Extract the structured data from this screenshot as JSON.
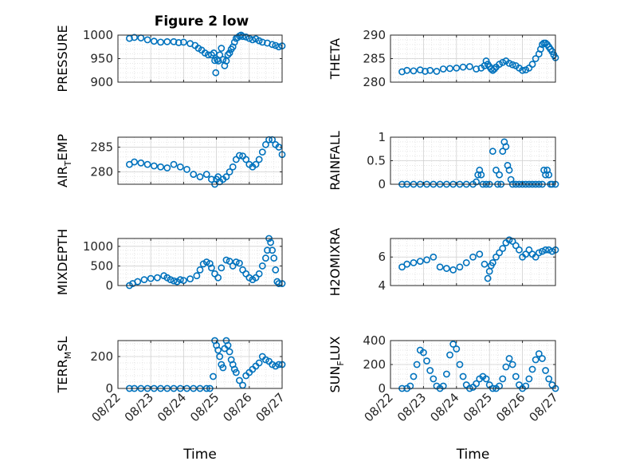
{
  "title": "Figure 2 low",
  "marker_color": "#0072BD",
  "x_tick_labels": [
    "08/22",
    "08/23",
    "08/24",
    "08/25",
    "08/26",
    "08/27"
  ],
  "x_axis_label": "Time",
  "ylabels": {
    "pressure": "PRESSURE",
    "theta": "THETA",
    "air_temp": "AIR_TEMP",
    "rainfall": "RAINFALL",
    "mixdepth": "MIXDEPTH",
    "h2omixra": "H2OMIXRA",
    "terr_msl": "TERR_MSL",
    "sun_flux": "SUN_FLUX"
  },
  "chart_data": [
    {
      "type": "scatter",
      "key": "pressure",
      "ylabel": "PRESSURE",
      "ylim": [
        900,
        1000
      ],
      "yticks": [
        900,
        950,
        1000
      ],
      "grid": true,
      "x": [
        0.35,
        0.5,
        0.7,
        0.9,
        1.1,
        1.3,
        1.5,
        1.7,
        1.85,
        2.0,
        2.2,
        2.35,
        2.45,
        2.55,
        2.65,
        2.75,
        2.85,
        2.92,
        2.95,
        2.98,
        3.02,
        3.06,
        3.1,
        3.15,
        3.2,
        3.25,
        3.3,
        3.35,
        3.4,
        3.45,
        3.5,
        3.55,
        3.6,
        3.65,
        3.7,
        3.75,
        3.8,
        3.9,
        4.0,
        4.1,
        4.2,
        4.3,
        4.4,
        4.55,
        4.7,
        4.8,
        4.9,
        5.0
      ],
      "y": [
        993,
        995,
        994,
        990,
        987,
        985,
        986,
        986,
        984,
        985,
        982,
        978,
        972,
        968,
        962,
        958,
        958,
        962,
        946,
        920,
        948,
        945,
        958,
        972,
        948,
        935,
        945,
        958,
        962,
        970,
        975,
        985,
        993,
        995,
        998,
        1000,
        997,
        996,
        993,
        990,
        992,
        988,
        985,
        983,
        980,
        978,
        975,
        977
      ]
    },
    {
      "type": "scatter",
      "key": "theta",
      "ylabel": "THETA",
      "ylim": [
        280,
        290
      ],
      "yticks": [
        280,
        285,
        290
      ],
      "grid": true,
      "x": [
        0.35,
        0.5,
        0.7,
        0.9,
        1.05,
        1.2,
        1.4,
        1.6,
        1.8,
        2.0,
        2.2,
        2.4,
        2.6,
        2.75,
        2.85,
        2.9,
        2.95,
        3.0,
        3.05,
        3.1,
        3.15,
        3.2,
        3.3,
        3.4,
        3.5,
        3.6,
        3.7,
        3.8,
        3.9,
        4.0,
        4.1,
        4.2,
        4.3,
        4.4,
        4.5,
        4.55,
        4.6,
        4.65,
        4.7,
        4.75,
        4.8,
        4.85,
        4.9,
        4.95,
        5.0
      ],
      "y": [
        282.2,
        282.5,
        282.4,
        282.6,
        282.3,
        282.5,
        282.3,
        282.8,
        282.9,
        283,
        283.2,
        283.3,
        282.8,
        283,
        283.5,
        284.5,
        283.8,
        283.3,
        282.8,
        282.5,
        282.8,
        283.2,
        283.8,
        284.2,
        284.5,
        284,
        283.7,
        283.5,
        283,
        282.5,
        282.6,
        283,
        283.8,
        285,
        286,
        287,
        288,
        288.3,
        288.3,
        288,
        287.5,
        287,
        286.5,
        285.8,
        285.2
      ]
    },
    {
      "type": "scatter",
      "key": "air_temp",
      "ylabel": "AIR_TEMP",
      "ylim": [
        277.5,
        287
      ],
      "yticks": [
        280,
        285
      ],
      "grid": true,
      "x": [
        0.35,
        0.5,
        0.7,
        0.9,
        1.1,
        1.3,
        1.5,
        1.7,
        1.9,
        2.1,
        2.3,
        2.5,
        2.7,
        2.85,
        2.95,
        3.0,
        3.05,
        3.1,
        3.2,
        3.3,
        3.4,
        3.5,
        3.6,
        3.7,
        3.8,
        3.9,
        4.0,
        4.1,
        4.2,
        4.3,
        4.4,
        4.5,
        4.6,
        4.7,
        4.8,
        4.9,
        5.0
      ],
      "y": [
        281.5,
        282,
        281.8,
        281.5,
        281.2,
        281,
        280.8,
        281.5,
        281,
        280.5,
        279.5,
        279,
        279.5,
        278.5,
        277.5,
        278.5,
        279,
        278,
        278.5,
        279,
        280,
        281,
        282.5,
        283.3,
        283.2,
        282.5,
        281.5,
        281,
        281.5,
        282.5,
        284,
        285.5,
        286.5,
        286.5,
        285.5,
        285,
        283.5
      ]
    },
    {
      "type": "scatter",
      "key": "rainfall",
      "ylabel": "RAINFALL",
      "ylim": [
        0,
        1
      ],
      "yticks": [
        0,
        0.5,
        1
      ],
      "grid": true,
      "x": [
        0.35,
        0.5,
        0.7,
        0.9,
        1.1,
        1.3,
        1.5,
        1.7,
        1.9,
        2.1,
        2.3,
        2.5,
        2.6,
        2.65,
        2.7,
        2.75,
        2.8,
        2.9,
        3.0,
        3.1,
        3.2,
        3.25,
        3.3,
        3.35,
        3.4,
        3.45,
        3.5,
        3.55,
        3.6,
        3.65,
        3.7,
        3.8,
        3.9,
        4.0,
        4.1,
        4.2,
        4.3,
        4.4,
        4.5,
        4.6,
        4.65,
        4.7,
        4.75,
        4.8,
        4.85,
        4.9,
        5.0
      ],
      "y": [
        0,
        0,
        0,
        0,
        0,
        0,
        0,
        0,
        0,
        0,
        0,
        0,
        0.05,
        0.2,
        0.3,
        0.2,
        0,
        0,
        0,
        0.7,
        0.3,
        0,
        0.2,
        0,
        0.7,
        0.9,
        0.8,
        0.4,
        0.3,
        0.1,
        0,
        0,
        0,
        0,
        0,
        0,
        0,
        0,
        0,
        0,
        0.3,
        0.2,
        0.3,
        0.2,
        0,
        0,
        0
      ]
    },
    {
      "type": "scatter",
      "key": "mixdepth",
      "ylabel": "MIXDEPTH",
      "ylim": [
        0,
        1200
      ],
      "yticks": [
        0,
        500,
        1000
      ],
      "grid": true,
      "x": [
        0.35,
        0.45,
        0.6,
        0.8,
        1.0,
        1.2,
        1.4,
        1.5,
        1.6,
        1.7,
        1.8,
        1.9,
        2.0,
        2.2,
        2.4,
        2.5,
        2.6,
        2.7,
        2.8,
        2.85,
        2.95,
        3.05,
        3.15,
        3.3,
        3.4,
        3.5,
        3.6,
        3.7,
        3.8,
        3.9,
        4.0,
        4.1,
        4.2,
        4.3,
        4.4,
        4.5,
        4.55,
        4.6,
        4.65,
        4.7,
        4.75,
        4.8,
        4.85,
        4.9,
        5.0
      ],
      "y": [
        0,
        50,
        100,
        150,
        180,
        200,
        250,
        200,
        150,
        120,
        100,
        150,
        130,
        170,
        250,
        400,
        550,
        600,
        560,
        450,
        300,
        200,
        450,
        650,
        620,
        500,
        600,
        570,
        400,
        300,
        200,
        150,
        200,
        300,
        500,
        700,
        900,
        1200,
        1100,
        900,
        700,
        400,
        100,
        50,
        50
      ]
    },
    {
      "type": "scatter",
      "key": "h2omixra",
      "ylabel": "H2OMIXRA",
      "ylim": [
        4,
        7.3
      ],
      "yticks": [
        4,
        6
      ],
      "grid": true,
      "x": [
        0.35,
        0.5,
        0.7,
        0.9,
        1.1,
        1.3,
        1.5,
        1.7,
        1.9,
        2.1,
        2.3,
        2.5,
        2.7,
        2.85,
        2.95,
        3.0,
        3.05,
        3.1,
        3.2,
        3.3,
        3.4,
        3.5,
        3.6,
        3.7,
        3.8,
        3.9,
        4.0,
        4.1,
        4.2,
        4.3,
        4.4,
        4.5,
        4.6,
        4.7,
        4.8,
        4.9,
        5.0
      ],
      "y": [
        5.3,
        5.5,
        5.6,
        5.7,
        5.8,
        6.0,
        5.3,
        5.2,
        5.1,
        5.3,
        5.6,
        6.0,
        6.2,
        5.5,
        4.5,
        5.0,
        5.4,
        5.6,
        6.0,
        6.3,
        6.6,
        7.0,
        7.2,
        7.1,
        6.8,
        6.5,
        6.0,
        6.2,
        6.5,
        6.2,
        6.0,
        6.3,
        6.4,
        6.5,
        6.5,
        6.4,
        6.5
      ]
    },
    {
      "type": "scatter",
      "key": "terr_msl",
      "ylabel": "TERR_MSL",
      "ylim": [
        0,
        300
      ],
      "yticks": [
        0,
        200
      ],
      "grid": true,
      "x": [
        0.35,
        0.5,
        0.7,
        0.9,
        1.1,
        1.3,
        1.5,
        1.7,
        1.9,
        2.1,
        2.3,
        2.5,
        2.7,
        2.8,
        2.9,
        2.95,
        3.0,
        3.05,
        3.1,
        3.15,
        3.2,
        3.25,
        3.3,
        3.35,
        3.4,
        3.45,
        3.5,
        3.55,
        3.6,
        3.7,
        3.8,
        3.9,
        4.0,
        4.1,
        4.2,
        4.3,
        4.4,
        4.5,
        4.6,
        4.7,
        4.8,
        4.9,
        5.0
      ],
      "y": [
        0,
        0,
        0,
        0,
        0,
        0,
        0,
        0,
        0,
        0,
        0,
        0,
        0,
        0,
        75,
        300,
        270,
        240,
        200,
        150,
        130,
        250,
        300,
        270,
        230,
        180,
        150,
        120,
        100,
        50,
        20,
        80,
        100,
        120,
        140,
        160,
        200,
        180,
        170,
        150,
        140,
        150,
        150
      ]
    },
    {
      "type": "scatter",
      "key": "sun_flux",
      "ylabel": "SUN_FLUX",
      "ylim": [
        0,
        400
      ],
      "yticks": [
        0,
        200,
        400
      ],
      "grid": true,
      "x": [
        0.35,
        0.5,
        0.6,
        0.7,
        0.8,
        0.9,
        1.0,
        1.1,
        1.2,
        1.3,
        1.4,
        1.5,
        1.6,
        1.7,
        1.8,
        1.9,
        2.0,
        2.1,
        2.2,
        2.3,
        2.4,
        2.5,
        2.6,
        2.7,
        2.8,
        2.9,
        3.0,
        3.1,
        3.2,
        3.3,
        3.4,
        3.5,
        3.6,
        3.7,
        3.8,
        3.9,
        4.0,
        4.1,
        4.2,
        4.3,
        4.4,
        4.5,
        4.6,
        4.7,
        4.8,
        4.9,
        5.0
      ],
      "y": [
        0,
        0,
        20,
        100,
        200,
        320,
        300,
        230,
        150,
        80,
        20,
        0,
        20,
        120,
        280,
        370,
        330,
        200,
        100,
        30,
        0,
        10,
        40,
        80,
        100,
        80,
        30,
        0,
        0,
        20,
        80,
        180,
        250,
        200,
        100,
        30,
        0,
        20,
        80,
        160,
        240,
        290,
        250,
        150,
        80,
        30,
        0
      ]
    }
  ]
}
